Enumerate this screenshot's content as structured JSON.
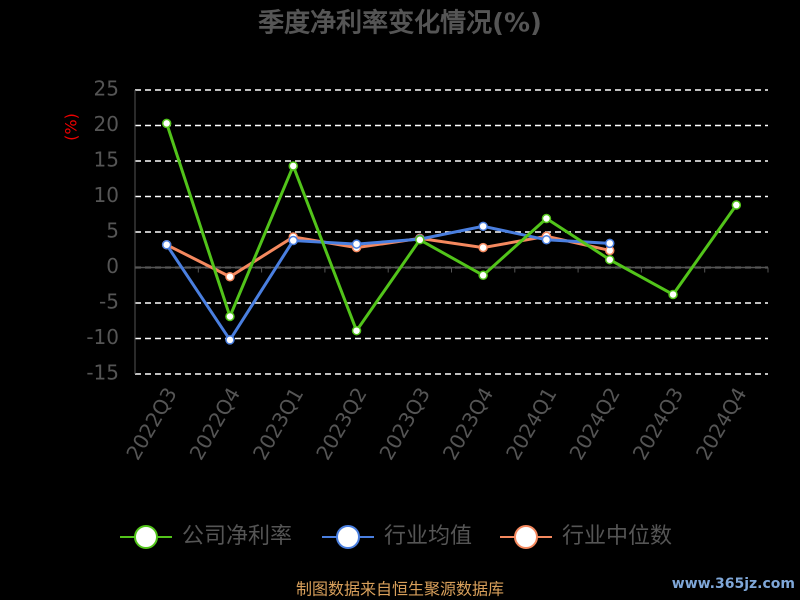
{
  "chart_data": {
    "type": "line",
    "title": "季度净利率变化情况(%)",
    "y_label": "(%)",
    "categories": [
      "2022Q3",
      "2022Q4",
      "2023Q1",
      "2023Q2",
      "2023Q3",
      "2023Q4",
      "2024Q1",
      "2024Q2",
      "2024Q3",
      "2024Q4"
    ],
    "series": [
      {
        "name": "公司净利率",
        "color": "#52c41a",
        "values": [
          20.3,
          -6.9,
          14.3,
          -8.9,
          3.9,
          -1.1,
          6.9,
          1.1,
          -3.8,
          8.8
        ]
      },
      {
        "name": "行业均值",
        "color": "#4a7fe0",
        "values": [
          3.2,
          -10.2,
          3.8,
          3.3,
          4.0,
          5.8,
          3.9,
          3.4,
          null,
          null
        ]
      },
      {
        "name": "行业中位数",
        "color": "#f5895f",
        "values": [
          3.2,
          -1.3,
          4.3,
          2.8,
          4.1,
          2.8,
          4.4,
          2.4,
          null,
          null
        ]
      }
    ],
    "ylim": [
      -15,
      25
    ],
    "yticks": [
      -15,
      -10,
      -5,
      0,
      5,
      10,
      15,
      20,
      25
    ],
    "grid": true,
    "source": "制图数据来自恒生聚源数据库",
    "watermark": "www.365jz.com"
  }
}
